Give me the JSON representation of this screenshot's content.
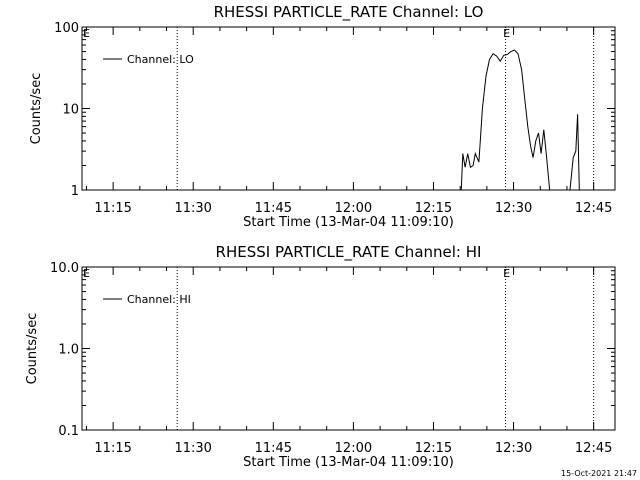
{
  "chart_data": [
    {
      "type": "line",
      "title": "RHESSI PARTICLE_RATE Channel: LO",
      "xlabel": "Start Time (13-Mar-04 11:09:10)",
      "ylabel": "Counts/sec",
      "yscale": "log",
      "ylim": [
        1,
        100
      ],
      "xlim": [
        "11:09:10",
        "12:49:00"
      ],
      "x_ticks": [
        "11:15",
        "11:30",
        "11:45",
        "12:00",
        "12:15",
        "12:30",
        "12:45"
      ],
      "y_ticks": [
        "1",
        "10",
        "100"
      ],
      "legend": {
        "label": "Channel: LO",
        "position": "top-left"
      },
      "markers": [
        {
          "time": "11:27:00",
          "label": ""
        },
        {
          "time": "12:28:30",
          "label": "E"
        },
        {
          "time": "12:45:00",
          "label": ""
        }
      ],
      "corner_marker": "E",
      "grid": false,
      "series": [
        {
          "name": "Channel: LO",
          "segments": [
            [
              [
                "12:20:10",
                0.9
              ],
              [
                "12:20:30",
                2.8
              ],
              [
                "12:20:55",
                1.9
              ],
              [
                "12:21:25",
                2.8
              ],
              [
                "12:21:55",
                1.9
              ],
              [
                "12:22:25",
                2.0
              ],
              [
                "12:22:50",
                2.8
              ],
              [
                "12:23:30",
                2.2
              ],
              [
                "12:24:10",
                10.0
              ],
              [
                "12:24:50",
                25.0
              ],
              [
                "12:25:30",
                40.0
              ],
              [
                "12:26:10",
                47.0
              ],
              [
                "12:26:50",
                44.0
              ],
              [
                "12:27:30",
                38.0
              ],
              [
                "12:28:10",
                45.0
              ],
              [
                "12:28:50",
                46.0
              ],
              [
                "12:29:30",
                50.0
              ],
              [
                "12:30:10",
                52.0
              ],
              [
                "12:30:50",
                47.0
              ],
              [
                "12:31:30",
                30.0
              ],
              [
                "12:32:10",
                12.0
              ],
              [
                "12:32:40",
                6.0
              ],
              [
                "12:33:10",
                3.5
              ],
              [
                "12:33:40",
                2.5
              ],
              [
                "12:34:10",
                4.0
              ],
              [
                "12:34:40",
                5.0
              ],
              [
                "12:35:10",
                2.8
              ],
              [
                "12:35:40",
                5.5
              ],
              [
                "12:36:10",
                2.6
              ],
              [
                "12:36:50",
                0.9
              ]
            ],
            [
              [
                "12:40:30",
                0.9
              ],
              [
                "12:41:10",
                2.5
              ],
              [
                "12:41:40",
                3.0
              ],
              [
                "12:42:00",
                8.5
              ],
              [
                "12:42:20",
                0.9
              ]
            ]
          ]
        }
      ]
    },
    {
      "type": "line",
      "title": "RHESSI PARTICLE_RATE Channel: HI",
      "xlabel": "Start Time (13-Mar-04 11:09:10)",
      "ylabel": "Counts/sec",
      "yscale": "log",
      "ylim": [
        0.1,
        10
      ],
      "xlim": [
        "11:09:10",
        "12:49:00"
      ],
      "x_ticks": [
        "11:15",
        "11:30",
        "11:45",
        "12:00",
        "12:15",
        "12:30",
        "12:45"
      ],
      "y_ticks": [
        "0.1",
        "1.0",
        "10.0"
      ],
      "legend": {
        "label": "Channel: HI",
        "position": "top-left"
      },
      "markers": [
        {
          "time": "11:27:00",
          "label": ""
        },
        {
          "time": "12:28:30",
          "label": "E"
        },
        {
          "time": "12:45:00",
          "label": ""
        }
      ],
      "corner_marker": "E",
      "grid": false,
      "series": [
        {
          "name": "Channel: HI",
          "segments": []
        }
      ]
    }
  ],
  "footer": {
    "timestamp": "15-Oct-2021 21:47"
  }
}
